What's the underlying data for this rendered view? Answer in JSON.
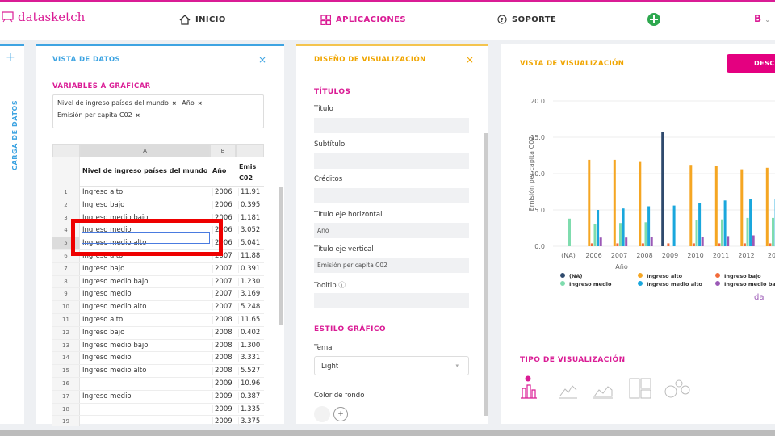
{
  "app": {
    "logo": "datasketch"
  },
  "nav": {
    "inicio": "INICIO",
    "aplicaciones": "APLICACIONES",
    "soporte": "SOPORTE",
    "user_initial": "B"
  },
  "rail": {
    "label": "CARGA DE DATOS"
  },
  "data_panel": {
    "title": "VISTA DE DATOS",
    "vars_title": "VARIABLES A GRAFICAR",
    "chips": [
      "Nivel de ingreso países del mundo",
      "Año",
      "Emisión per capita C02"
    ],
    "col_letters": [
      "A",
      "B",
      ""
    ],
    "headers": [
      "Nivel de ingreso países del mundo",
      "Año",
      "Emis C02"
    ],
    "rows": [
      [
        "1",
        "Ingreso alto",
        "2006",
        "11.91"
      ],
      [
        "2",
        "Ingreso bajo",
        "2006",
        "0.395"
      ],
      [
        "3",
        "Ingreso medio bajo",
        "2006",
        "1.181"
      ],
      [
        "4",
        "Ingreso medio",
        "2006",
        "3.052"
      ],
      [
        "5",
        "Ingreso medio alto",
        "2006",
        "5.041"
      ],
      [
        "6",
        "Ingreso alto",
        "2007",
        "11.88"
      ],
      [
        "7",
        "Ingreso bajo",
        "2007",
        "0.391"
      ],
      [
        "8",
        "Ingreso medio bajo",
        "2007",
        "1.230"
      ],
      [
        "9",
        "Ingreso medio",
        "2007",
        "3.169"
      ],
      [
        "10",
        "Ingreso medio alto",
        "2007",
        "5.248"
      ],
      [
        "11",
        "Ingreso alto",
        "2008",
        "11.65"
      ],
      [
        "12",
        "Ingreso bajo",
        "2008",
        "0.402"
      ],
      [
        "13",
        "Ingreso medio bajo",
        "2008",
        "1.300"
      ],
      [
        "14",
        "Ingreso medio",
        "2008",
        "3.331"
      ],
      [
        "15",
        "Ingreso medio alto",
        "2008",
        "5.527"
      ],
      [
        "16",
        "",
        "2009",
        "10.96"
      ],
      [
        "17",
        "Ingreso medio",
        "2009",
        "0.387"
      ],
      [
        "18",
        "",
        "2009",
        "1.335"
      ],
      [
        "19",
        "",
        "2009",
        "3.375"
      ]
    ]
  },
  "design_panel": {
    "title": "DISEÑO DE VISUALIZACIÓN",
    "titulos": "TÍTULOS",
    "fields": [
      {
        "label": "Título",
        "value": ""
      },
      {
        "label": "Subtítulo",
        "value": ""
      },
      {
        "label": "Créditos",
        "value": ""
      },
      {
        "label": "Título eje horizontal",
        "value": "Año"
      },
      {
        "label": "Título eje vertical",
        "value": "Emisión per capita C02"
      },
      {
        "label": "Tooltip",
        "value": ""
      }
    ],
    "estilo": "ESTILO GRÁFICO",
    "tema_label": "Tema",
    "tema_value": "Light",
    "color_label": "Color de fondo"
  },
  "viz_panel": {
    "title": "VISTA DE VISUALIZACIÓN",
    "download": "DESCA",
    "tipo": "TIPO DE VISUALIZACIÓN",
    "watermark": "da"
  },
  "colors": {
    "(NA)": "#2f4a6d",
    "Ingreso alto": "#f5a623",
    "Ingreso bajo": "#f26b3a",
    "Ingreso medio": "#7fdcae",
    "Ingreso medio alto": "#1aa7dd",
    "Ingreso medio bajo": "#9b59b6"
  },
  "chart_data": {
    "type": "bar",
    "xlabel": "Año",
    "ylabel": "Emisión per capita C02",
    "ylim": [
      0,
      20
    ],
    "yticks": [
      "0.0",
      "5.0",
      "10.0",
      "15.0",
      "20.0"
    ],
    "categories": [
      "(NA)",
      "2006",
      "2007",
      "2008",
      "2009",
      "2010",
      "2011",
      "2012",
      "20"
    ],
    "series": [
      {
        "name": "(NA)",
        "values": [
          0,
          0,
          0,
          0,
          15.7,
          0,
          0,
          0,
          0
        ]
      },
      {
        "name": "Ingreso alto",
        "values": [
          0,
          11.9,
          11.9,
          11.6,
          0,
          11.2,
          11.0,
          10.6,
          10.8
        ]
      },
      {
        "name": "Ingreso bajo",
        "values": [
          0,
          0.4,
          0.4,
          0.4,
          0.4,
          0.4,
          0.4,
          0.4,
          0.4
        ]
      },
      {
        "name": "Ingreso medio",
        "values": [
          3.8,
          3.1,
          3.2,
          3.3,
          0,
          3.6,
          3.7,
          3.9,
          3.9
        ]
      },
      {
        "name": "Ingreso medio alto",
        "values": [
          0,
          5.0,
          5.2,
          5.5,
          5.6,
          5.9,
          6.3,
          6.5,
          6.5
        ]
      },
      {
        "name": "Ingreso medio bajo",
        "values": [
          0,
          1.2,
          1.2,
          1.3,
          0,
          1.3,
          1.4,
          1.5,
          1.5
        ]
      }
    ]
  }
}
